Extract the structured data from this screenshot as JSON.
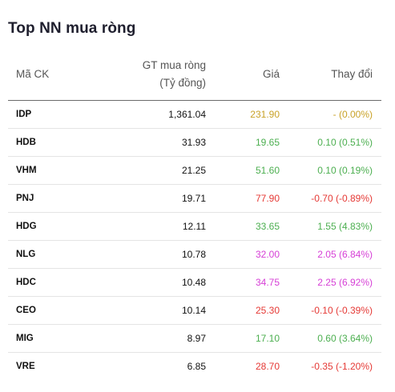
{
  "title": "Top NN mua ròng",
  "header": {
    "code": "Mã CK",
    "value_line1": "GT mua ròng",
    "value_line2": "(Tỷ đồng)",
    "price": "Giá",
    "change": "Thay đổi"
  },
  "colors": {
    "up": "#4caf50",
    "down": "#e53935",
    "reference": "#c9a227",
    "ceiling": "#d63fd6"
  },
  "rows": [
    {
      "code": "IDP",
      "value": "1,361.04",
      "price": "231.90",
      "change": "- (0.00%)",
      "status": "ref"
    },
    {
      "code": "HDB",
      "value": "31.93",
      "price": "19.65",
      "change": "0.10 (0.51%)",
      "status": "up"
    },
    {
      "code": "VHM",
      "value": "21.25",
      "price": "51.60",
      "change": "0.10 (0.19%)",
      "status": "up"
    },
    {
      "code": "PNJ",
      "value": "19.71",
      "price": "77.90",
      "change": "-0.70 (-0.89%)",
      "status": "down"
    },
    {
      "code": "HDG",
      "value": "12.11",
      "price": "33.65",
      "change": "1.55 (4.83%)",
      "status": "up"
    },
    {
      "code": "NLG",
      "value": "10.78",
      "price": "32.00",
      "change": "2.05 (6.84%)",
      "status": "ceil"
    },
    {
      "code": "HDC",
      "value": "10.48",
      "price": "34.75",
      "change": "2.25 (6.92%)",
      "status": "ceil"
    },
    {
      "code": "CEO",
      "value": "10.14",
      "price": "25.30",
      "change": "-0.10 (-0.39%)",
      "status": "down"
    },
    {
      "code": "MIG",
      "value": "8.97",
      "price": "17.10",
      "change": "0.60 (3.64%)",
      "status": "up"
    },
    {
      "code": "VRE",
      "value": "6.85",
      "price": "28.70",
      "change": "-0.35 (-1.20%)",
      "status": "down"
    }
  ]
}
